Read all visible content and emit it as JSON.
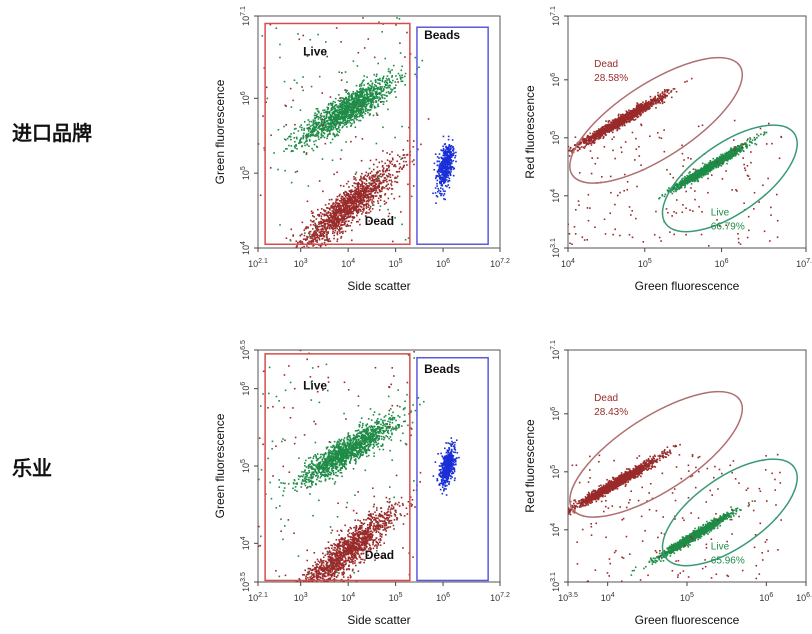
{
  "row_labels": [
    "进口品牌",
    "乐业"
  ],
  "colors": {
    "live": "#1e8c47",
    "dead": "#9a2b2b",
    "beads": "#1a2fd6",
    "live_gate": "#d94b4b",
    "beads_gate": "#5a5ad8",
    "dead_ellipse": "#b07070",
    "live_ellipse": "#3a9a76"
  },
  "chart_data": [
    {
      "type": "scatter",
      "xlabel": "Side scatter",
      "ylabel": "Green fluorescence",
      "x_scale": "log",
      "y_scale": "log",
      "xlim": [
        2.1,
        7.2
      ],
      "ylim": [
        4,
        7.1
      ],
      "x_ticks": [
        {
          "v": 2.1,
          "t": "10",
          "e": "2.1"
        },
        {
          "v": 3,
          "t": "10",
          "e": "3"
        },
        {
          "v": 4,
          "t": "10",
          "e": "4"
        },
        {
          "v": 5,
          "t": "10",
          "e": "5"
        },
        {
          "v": 6,
          "t": "10",
          "e": "6"
        },
        {
          "v": 7.2,
          "t": "10",
          "e": "7.2"
        }
      ],
      "y_ticks": [
        {
          "v": 4,
          "t": "10",
          "e": "4"
        },
        {
          "v": 5,
          "t": "10",
          "e": "5"
        },
        {
          "v": 6,
          "t": "10",
          "e": "6"
        },
        {
          "v": 7.1,
          "t": "10",
          "e": "7.1"
        }
      ],
      "annotations": [
        "Live",
        "Dead",
        "Beads"
      ],
      "populations": [
        {
          "name": "Live",
          "center_log": [
            4.0,
            5.85
          ],
          "spread_log": [
            0.45,
            0.25
          ]
        },
        {
          "name": "Dead",
          "center_log": [
            4.0,
            4.55
          ],
          "spread_log": [
            0.45,
            0.3
          ]
        },
        {
          "name": "Beads",
          "center_log": [
            6.05,
            5.1
          ],
          "spread_log": [
            0.07,
            0.15
          ]
        }
      ],
      "gates": [
        {
          "name": "Live gate",
          "x_log": [
            2.25,
            5.3
          ],
          "y_log": [
            4.05,
            7.0
          ]
        },
        {
          "name": "Beads gate",
          "x_log": [
            5.45,
            6.95
          ],
          "y_log": [
            4.05,
            6.95
          ]
        }
      ]
    },
    {
      "type": "scatter",
      "xlabel": "Green fluorescence",
      "ylabel": "Red fluorescence",
      "x_scale": "log",
      "y_scale": "log",
      "xlim": [
        4,
        7.1
      ],
      "ylim": [
        3.1,
        7.1
      ],
      "x_ticks": [
        {
          "v": 4,
          "t": "10",
          "e": "4"
        },
        {
          "v": 5,
          "t": "10",
          "e": "5"
        },
        {
          "v": 6,
          "t": "10",
          "e": "6"
        },
        {
          "v": 7.1,
          "t": "10",
          "e": "7.1"
        }
      ],
      "y_ticks": [
        {
          "v": 3.1,
          "t": "10",
          "e": "3.1"
        },
        {
          "v": 4,
          "t": "10",
          "e": "4"
        },
        {
          "v": 5,
          "t": "10",
          "e": "5"
        },
        {
          "v": 6,
          "t": "10",
          "e": "6"
        },
        {
          "v": 7.1,
          "t": "10",
          "e": "7.1"
        }
      ],
      "annotations": [
        {
          "label": "Dead",
          "value": "28.58%"
        },
        {
          "label": "Live",
          "value": "66.79%"
        }
      ],
      "populations": [
        {
          "name": "Dead",
          "percent": 28.58,
          "center_log": [
            4.7,
            5.3
          ]
        },
        {
          "name": "Live",
          "percent": 66.79,
          "center_log": [
            5.85,
            4.5
          ]
        }
      ]
    },
    {
      "type": "scatter",
      "xlabel": "Side scatter",
      "ylabel": "Green fluorescence",
      "x_scale": "log",
      "y_scale": "log",
      "xlim": [
        2.1,
        7.2
      ],
      "ylim": [
        3.5,
        6.5
      ],
      "x_ticks": [
        {
          "v": 2.1,
          "t": "10",
          "e": "2.1"
        },
        {
          "v": 3,
          "t": "10",
          "e": "3"
        },
        {
          "v": 4,
          "t": "10",
          "e": "4"
        },
        {
          "v": 5,
          "t": "10",
          "e": "5"
        },
        {
          "v": 6,
          "t": "10",
          "e": "6"
        },
        {
          "v": 7.2,
          "t": "10",
          "e": "7.2"
        }
      ],
      "y_ticks": [
        {
          "v": 3.5,
          "t": "10",
          "e": "3.5"
        },
        {
          "v": 4,
          "t": "10",
          "e": "4"
        },
        {
          "v": 5,
          "t": "10",
          "e": "5"
        },
        {
          "v": 6,
          "t": "10",
          "e": "6"
        },
        {
          "v": 6.5,
          "t": "10",
          "e": "6.5"
        }
      ],
      "annotations": [
        "Live",
        "Dead",
        "Beads"
      ],
      "populations": [
        {
          "name": "Live",
          "center_log": [
            4.0,
            5.2
          ],
          "spread_log": [
            0.45,
            0.22
          ]
        },
        {
          "name": "Dead",
          "center_log": [
            4.0,
            3.9
          ],
          "spread_log": [
            0.45,
            0.28
          ]
        },
        {
          "name": "Beads",
          "center_log": [
            6.1,
            5.0
          ],
          "spread_log": [
            0.07,
            0.12
          ]
        }
      ],
      "gates": [
        {
          "name": "Live gate",
          "x_log": [
            2.25,
            5.3
          ],
          "y_log": [
            3.52,
            6.45
          ]
        },
        {
          "name": "Beads gate",
          "x_log": [
            5.45,
            6.95
          ],
          "y_log": [
            3.52,
            6.4
          ]
        }
      ]
    },
    {
      "type": "scatter",
      "xlabel": "Green fluorescence",
      "ylabel": "Red fluorescence",
      "x_scale": "log",
      "y_scale": "log",
      "xlim": [
        3.5,
        6.5
      ],
      "ylim": [
        3.1,
        7.1
      ],
      "x_ticks": [
        {
          "v": 3.5,
          "t": "10",
          "e": "3.5"
        },
        {
          "v": 4,
          "t": "10",
          "e": "4"
        },
        {
          "v": 5,
          "t": "10",
          "e": "5"
        },
        {
          "v": 6,
          "t": "10",
          "e": "6"
        },
        {
          "v": 6.5,
          "t": "10",
          "e": "6.5"
        }
      ],
      "y_ticks": [
        {
          "v": 3.1,
          "t": "10",
          "e": "3.1"
        },
        {
          "v": 4,
          "t": "10",
          "e": "4"
        },
        {
          "v": 5,
          "t": "10",
          "e": "5"
        },
        {
          "v": 6,
          "t": "10",
          "e": "6"
        },
        {
          "v": 7.1,
          "t": "10",
          "e": "7.1"
        }
      ],
      "annotations": [
        {
          "label": "Dead",
          "value": "28.43%"
        },
        {
          "label": "Live",
          "value": "65.96%"
        }
      ],
      "populations": [
        {
          "name": "Dead",
          "percent": 28.43,
          "center_log": [
            4.1,
            4.8
          ]
        },
        {
          "name": "Live",
          "percent": 65.96,
          "center_log": [
            5.1,
            3.9
          ]
        }
      ]
    }
  ]
}
